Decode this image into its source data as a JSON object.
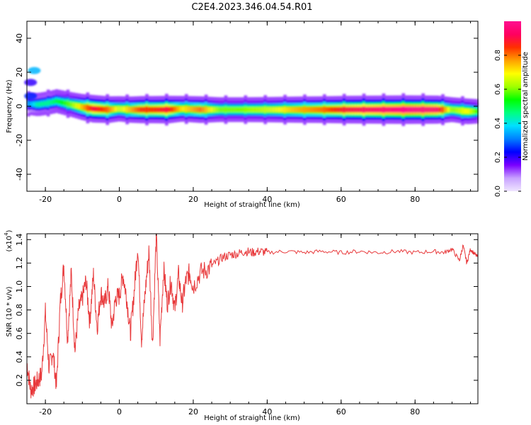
{
  "title": "C2E4.2023.346.04.54.R01",
  "chart_data": [
    {
      "type": "heatmap",
      "xlabel": "Height of straight line (km)",
      "ylabel": "Frequency (Hz)",
      "xlim": [
        -25,
        97
      ],
      "ylim": [
        -50,
        50
      ],
      "xticks": [
        -20,
        0,
        20,
        40,
        60,
        80
      ],
      "yticks": [
        -40,
        -20,
        0,
        20,
        40
      ],
      "ridge": [
        {
          "x": -25,
          "y": 1.5,
          "a": 0.3
        },
        {
          "x": -22,
          "y": 1.0,
          "a": 0.45
        },
        {
          "x": -19,
          "y": 2.0,
          "a": 0.45
        },
        {
          "x": -17,
          "y": 3.0,
          "a": 0.5
        },
        {
          "x": -15,
          "y": 2.0,
          "a": 0.55
        },
        {
          "x": -13,
          "y": 1.0,
          "a": 0.6
        },
        {
          "x": -10,
          "y": -0.5,
          "a": 0.75
        },
        {
          "x": -7,
          "y": -1.5,
          "a": 0.9
        },
        {
          "x": -3,
          "y": -2.0,
          "a": 0.8
        },
        {
          "x": 0,
          "y": -1.5,
          "a": 0.65
        },
        {
          "x": 3,
          "y": -2.0,
          "a": 0.75
        },
        {
          "x": 6,
          "y": -2.0,
          "a": 0.85
        },
        {
          "x": 9,
          "y": -2.0,
          "a": 0.85
        },
        {
          "x": 13,
          "y": -2.0,
          "a": 0.9
        },
        {
          "x": 17,
          "y": -1.5,
          "a": 0.7
        },
        {
          "x": 22,
          "y": -2.0,
          "a": 0.8
        },
        {
          "x": 27,
          "y": -2.0,
          "a": 0.6
        },
        {
          "x": 33,
          "y": -2.0,
          "a": 0.6
        },
        {
          "x": 40,
          "y": -2.0,
          "a": 0.65
        },
        {
          "x": 48,
          "y": -2.0,
          "a": 0.75
        },
        {
          "x": 55,
          "y": -2.0,
          "a": 0.8
        },
        {
          "x": 62,
          "y": -2.0,
          "a": 0.9
        },
        {
          "x": 70,
          "y": -2.0,
          "a": 0.95
        },
        {
          "x": 78,
          "y": -2.0,
          "a": 1.0
        },
        {
          "x": 86,
          "y": -2.0,
          "a": 0.95
        },
        {
          "x": 90,
          "y": -2.0,
          "a": 0.6
        },
        {
          "x": 94,
          "y": -3.0,
          "a": 0.7
        },
        {
          "x": 97,
          "y": -3.0,
          "a": 0.55
        }
      ],
      "blobs": [
        {
          "x": -23,
          "y": 21,
          "a": 0.35
        },
        {
          "x": -24,
          "y": 14,
          "a": 0.2
        },
        {
          "x": -24,
          "y": 6,
          "a": 0.25
        }
      ],
      "colorbar": {
        "label": "Normalized spectral amplitude",
        "range": [
          0,
          1
        ],
        "ticks": [
          "0.0",
          "0.2",
          "0.4",
          "0.6",
          "0.8"
        ],
        "tick_values": [
          0.0,
          0.2,
          0.4,
          0.6,
          0.8
        ],
        "colors": [
          "#f0e6ff",
          "#c8a2ff",
          "#7a00ff",
          "#0000ff",
          "#0080ff",
          "#00e0ff",
          "#00ff80",
          "#00ff00",
          "#a0ff00",
          "#ffff00",
          "#ffa000",
          "#ff3000",
          "#ff0060",
          "#ff1090"
        ]
      }
    },
    {
      "type": "line",
      "xlabel": "Height of straight line (km)",
      "ylabel": "SNR (10 * v/v)",
      "multiplier": "(x10",
      "multiplier_exp": "4",
      "xlim": [
        -25,
        97
      ],
      "ylim": [
        0,
        1.45
      ],
      "xticks": [
        -20,
        0,
        20,
        40,
        60,
        80
      ],
      "yticks": [
        "0.2",
        "0.4",
        "0.6",
        "0.8",
        "1.0",
        "1.2",
        "1.4"
      ],
      "ytick_values": [
        0.2,
        0.4,
        0.6,
        0.8,
        1.0,
        1.2,
        1.4
      ],
      "color": "#e8393b",
      "x": [
        -25,
        -24,
        -23,
        -22,
        -21,
        -20,
        -19,
        -18,
        -17,
        -16,
        -15,
        -14,
        -13,
        -12,
        -11,
        -10,
        -9,
        -8,
        -7,
        -6,
        -5,
        -4,
        -3,
        -2,
        -1,
        0,
        1,
        2,
        3,
        4,
        5,
        6,
        7,
        8,
        9,
        10,
        11,
        12,
        13,
        14,
        15,
        16,
        17,
        18,
        19,
        20,
        22,
        24,
        26,
        28,
        30,
        32,
        34,
        36,
        38,
        40,
        45,
        50,
        55,
        60,
        65,
        70,
        75,
        80,
        85,
        88,
        90,
        92,
        93,
        94,
        95,
        96,
        97
      ],
      "y": [
        0.35,
        0.12,
        0.15,
        0.2,
        0.25,
        0.78,
        0.3,
        0.45,
        0.15,
        0.85,
        1.18,
        0.55,
        1.12,
        0.45,
        0.8,
        0.9,
        1.05,
        0.7,
        1.1,
        0.65,
        0.95,
        0.85,
        1.0,
        0.65,
        0.9,
        0.92,
        1.1,
        0.9,
        0.6,
        0.95,
        1.35,
        0.55,
        0.95,
        1.3,
        0.5,
        1.45,
        0.55,
        1.15,
        0.85,
        1.05,
        0.8,
        1.1,
        0.85,
        1.05,
        1.12,
        1.0,
        1.12,
        1.15,
        1.2,
        1.25,
        1.27,
        1.28,
        1.3,
        1.29,
        1.3,
        1.29,
        1.3,
        1.29,
        1.3,
        1.29,
        1.3,
        1.29,
        1.3,
        1.29,
        1.3,
        1.29,
        1.32,
        1.22,
        1.35,
        1.2,
        1.32,
        1.28,
        1.25
      ]
    }
  ]
}
